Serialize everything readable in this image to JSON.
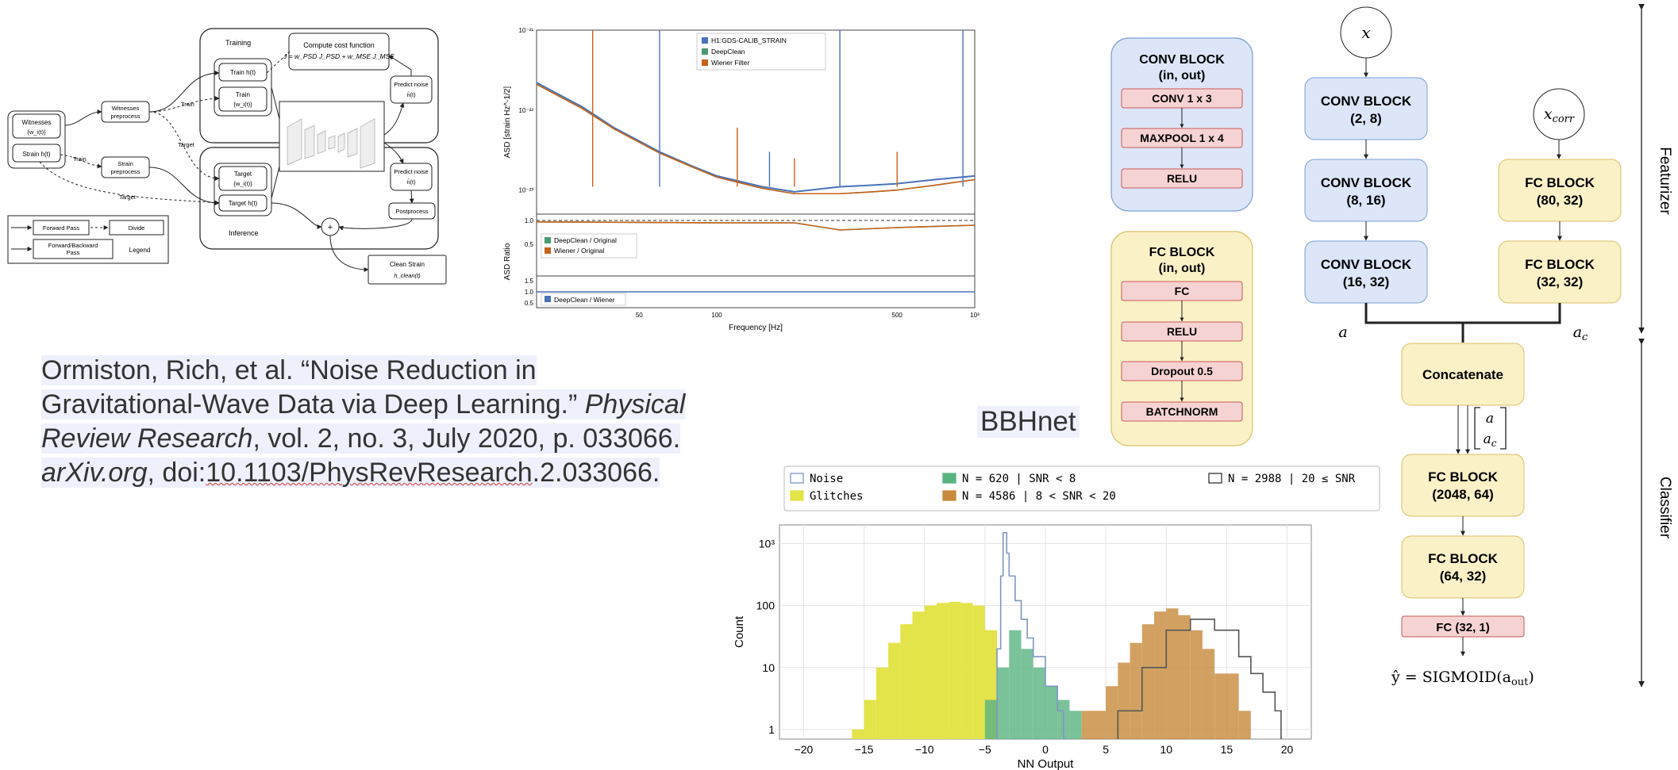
{
  "pipeline": {
    "training_title": "Training",
    "inference_title": "Inference",
    "cost_title": "Compute cost function",
    "cost_formula": "J = w_PSD J_PSD + w_MSE J_MSE",
    "witnesses_label": "Witnesses",
    "witnesses_sub": "{w_i(t)}",
    "strain_label": "Strain h(t)",
    "witnesses_preprocess": "Witnesses preprocess",
    "strain_preprocess": "Strain preprocess",
    "train_h": "Train h(t)",
    "train_w": "Train",
    "train_w_sub": "{w_i(t)}",
    "predict_noise_top": "Predict noise",
    "predict_noise_top_sub": "n̂(t)",
    "target_w": "Target",
    "target_w_sub": "{w_i(t)}",
    "target_h": "Target h(t)",
    "predict_noise_bottom": "Predict noise",
    "predict_noise_bottom_sub": "n̂(t)",
    "postprocess": "Postprocess",
    "clean_strain": "Clean Strain",
    "clean_strain_sub": "h_clean(t)",
    "edge_train_1": "Train",
    "edge_train_2": "Train",
    "edge_target_1": "Target",
    "edge_target_2": "Target",
    "plus": "+",
    "legend_forward": "Forward Pass",
    "legend_divide": "Divide",
    "legend_fb": "Forward/Backward Pass",
    "legend_title": "Legend"
  },
  "asd_plot": {
    "ylabel_top": "ASD [strain Hz^-1/2]",
    "ylabel_bottom": "ASD Ratio",
    "xlabel": "Frequency [Hz]",
    "y_ticks_top": [
      "10⁻²¹",
      "10⁻²²",
      "10⁻²³"
    ],
    "y_ticks_mid": [
      "1.0",
      "0.5"
    ],
    "y_ticks_low": [
      "1.5",
      "1.0",
      "0.5"
    ],
    "x_ticks": [
      "50",
      "100",
      "500",
      "10³"
    ],
    "legend_top": [
      "H1:GDS-CALIB_STRAIN",
      "DeepClean",
      "Wiener Filter"
    ],
    "legend_mid": [
      "DeepClean / Original",
      "Wiener / Original"
    ],
    "legend_low": [
      "DeepClean / Wiener"
    ],
    "colors": {
      "blue": "#4a72b8",
      "green": "#4c9a72",
      "orange": "#c8621a"
    }
  },
  "citation": {
    "line1": "Ormiston, Rich, et al. “Noise Reduction in",
    "line2a": "Gravitational-Wave Data via Deep Learning.” ",
    "line2b": "Physical",
    "line3a": "Review Research",
    "line3b": ", vol. 2, no. 3, July 2020, p. 033066.",
    "line4a": "arXiv.org",
    "line4b": ", doi:",
    "line4c": "10.1103/PhysRevResearch",
    "line4d": ".2.033066."
  },
  "bbhnet_label": "BBHnet",
  "blocks_legend": {
    "conv_title": "CONV BLOCK",
    "conv_sub": "(in, out)",
    "conv_items": [
      "CONV 1 x 3",
      "MAXPOOL 1 x 4",
      "RELU"
    ],
    "fc_title": "FC BLOCK",
    "fc_sub": "(in, out)",
    "fc_items": [
      "FC",
      "RELU",
      "Dropout 0.5",
      "BATCHNORM"
    ]
  },
  "arch": {
    "x_label": "x",
    "xcorr_label": "x_corr",
    "conv1": {
      "title": "CONV BLOCK",
      "sub": "(2, 8)"
    },
    "conv2": {
      "title": "CONV BLOCK",
      "sub": "(8, 16)"
    },
    "conv3": {
      "title": "CONV BLOCK",
      "sub": "(16, 32)"
    },
    "fc_a": {
      "title": "FC BLOCK",
      "sub": "(80, 32)"
    },
    "fc_b": {
      "title": "FC BLOCK",
      "sub": "(32, 32)"
    },
    "a_label": "a",
    "ac_label": "a_c",
    "concat": "Concatenate",
    "vec_top": "a",
    "vec_bot": "a_c",
    "fc1": {
      "title": "FC BLOCK",
      "sub": "(2048, 64)"
    },
    "fc2": {
      "title": "FC BLOCK",
      "sub": "(64, 32)"
    },
    "fc_out": "FC (32, 1)",
    "output_eq": "ŷ = SIGMOID(a_out)",
    "featurizer": "Featurizer",
    "classifier": "Classifier",
    "colors": {
      "conv_fill": "#dce6f8",
      "conv_stroke": "#7b9fd6",
      "fc_fill": "#fbf1c7",
      "fc_stroke": "#d9c06a",
      "red_fill": "#f6d3d3",
      "red_stroke": "#c85a5a"
    }
  },
  "histogram": {
    "ylabel": "Count",
    "xlabel": "NN Output",
    "legend": {
      "noise": "Noise",
      "glitches": "Glitches",
      "low": "N =  620 | SNR < 8",
      "mid": "N = 4586 | 8 < SNR < 20",
      "high": "N = 2988 | 20 ≤ SNR"
    },
    "y_ticks": [
      "10³",
      "100",
      "10",
      "1"
    ],
    "x_ticks": [
      "−20",
      "−15",
      "−10",
      "−5",
      "0",
      "5",
      "10",
      "15",
      "20"
    ],
    "colors": {
      "glitch": "#e3e34a",
      "noise": "#7f97c4",
      "green": "#5ab482",
      "orange": "#c88a3c",
      "gray": "#555555"
    }
  },
  "chart_data": [
    {
      "type": "line",
      "title": "",
      "xlabel": "Frequency [Hz]",
      "ylabel": "ASD [strain Hz^-1/2]",
      "xscale": "log",
      "yscale": "log",
      "xlim": [
        20,
        1000
      ],
      "ylim": [
        5e-24,
        1e-21
      ],
      "x": [
        20,
        30,
        40,
        60,
        80,
        100,
        150,
        200,
        300,
        400,
        500,
        700,
        1000
      ],
      "series": [
        {
          "name": "H1:GDS-CALIB_STRAIN",
          "values": [
            2.2e-22,
            1.1e-22,
            6e-23,
            3e-23,
            2e-23,
            1.5e-23,
            1.1e-23,
            9.5e-24,
            1.1e-23,
            1.15e-23,
            1.2e-23,
            1.35e-23,
            1.5e-23
          ]
        },
        {
          "name": "DeepClean",
          "values": [
            2.1e-22,
            1.05e-22,
            5.8e-23,
            2.9e-23,
            1.95e-23,
            1.45e-23,
            1.05e-23,
            9e-24,
            9e-24,
            9.5e-24,
            1e-23,
            1.15e-23,
            1.35e-23
          ]
        },
        {
          "name": "Wiener Filter",
          "values": [
            2.1e-22,
            1.05e-22,
            5.8e-23,
            2.9e-23,
            1.95e-23,
            1.45e-23,
            1.05e-23,
            9e-24,
            9e-24,
            9.5e-24,
            1e-23,
            1.15e-23,
            1.35e-23
          ]
        }
      ]
    },
    {
      "type": "line",
      "ylabel": "ASD Ratio",
      "ylim": [
        0,
        1.1
      ],
      "x": [
        20,
        50,
        100,
        200,
        300,
        500,
        1000
      ],
      "series": [
        {
          "name": "DeepClean / Original",
          "values": [
            0.97,
            0.96,
            0.95,
            0.95,
            0.8,
            0.85,
            0.9
          ]
        },
        {
          "name": "Wiener / Original",
          "values": [
            0.97,
            0.96,
            0.95,
            0.95,
            0.8,
            0.85,
            0.9
          ]
        }
      ]
    },
    {
      "type": "line",
      "ylim": [
        0.5,
        1.5
      ],
      "x": [
        20,
        50,
        100,
        200,
        500,
        1000
      ],
      "series": [
        {
          "name": "DeepClean / Wiener",
          "values": [
            1.0,
            1.0,
            1.0,
            1.0,
            1.0,
            1.0
          ]
        }
      ]
    },
    {
      "type": "bar",
      "title": "",
      "xlabel": "NN Output",
      "ylabel": "Count",
      "yscale": "log",
      "xlim": [
        -22,
        22
      ],
      "ylim": [
        0.7,
        2000
      ],
      "series": [
        {
          "name": "Glitches",
          "x": [
            -16,
            -15,
            -14,
            -13,
            -12,
            -11,
            -10,
            -9,
            -8,
            -7,
            -6,
            -5
          ],
          "values": [
            1,
            3,
            10,
            25,
            50,
            80,
            100,
            110,
            115,
            110,
            100,
            40
          ]
        },
        {
          "name": "Noise",
          "x": [
            -4,
            -3.7,
            -3.5,
            -3.2,
            -3,
            -2.5,
            -2,
            -1.5,
            -1,
            0,
            1
          ],
          "values": [
            20,
            300,
            1500,
            700,
            300,
            120,
            60,
            30,
            15,
            5,
            2
          ]
        },
        {
          "name": "N =  620 | SNR < 8",
          "x": [
            -5,
            -4,
            -3,
            -2,
            -1,
            0,
            1,
            2
          ],
          "values": [
            3,
            10,
            40,
            20,
            10,
            5,
            3,
            2
          ]
        },
        {
          "name": "N = 4586 | 8 < SNR < 20",
          "x": [
            3,
            5,
            6,
            7,
            8,
            9,
            10,
            11,
            12,
            13,
            14,
            16
          ],
          "values": [
            2,
            5,
            12,
            25,
            50,
            80,
            90,
            70,
            40,
            20,
            8,
            2
          ]
        },
        {
          "name": "N = 2988 | 20 ≤ SNR",
          "x": [
            6,
            8,
            10,
            12,
            14,
            16,
            17,
            18,
            19
          ],
          "values": [
            2,
            10,
            40,
            60,
            40,
            15,
            8,
            4,
            2
          ]
        }
      ]
    }
  ]
}
